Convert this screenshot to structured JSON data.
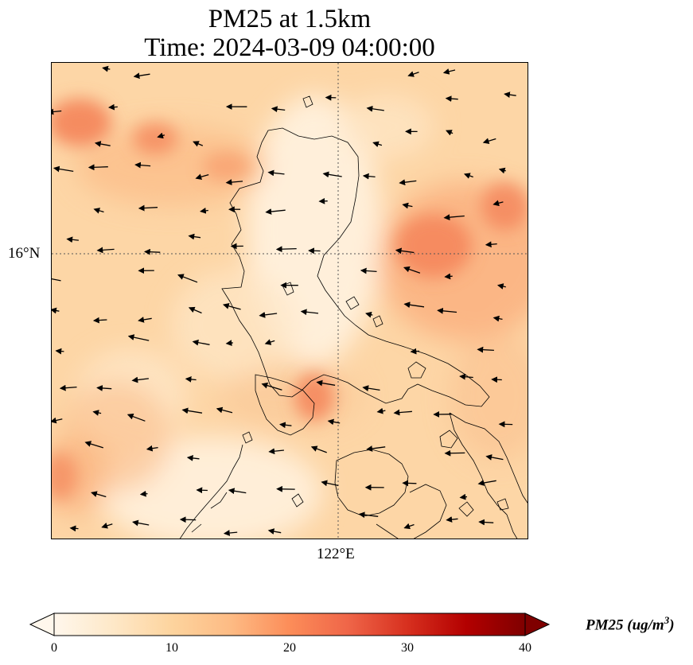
{
  "title": {
    "line1": "PM25 at 1.5km",
    "line2": "Time: 2024-03-09 04:00:00"
  },
  "map": {
    "gridline_lat_label": "16°N",
    "gridline_lon_label": "122°E",
    "colormap_name": "OrRd",
    "background_color": "#fdd9ab",
    "hotspot_color": "#f4845a",
    "coastline_color": "#000000",
    "wind_vector_color": "#000000",
    "wind_direction": "mostly westward / west-southwest"
  },
  "colorbar": {
    "ticks": [
      "0",
      "10",
      "20",
      "30",
      "40"
    ],
    "vmin": 0,
    "vmax": 40,
    "label_prefix": "PM25 (ug/m",
    "label_exponent": "3",
    "label_suffix": ")",
    "extend": "both",
    "colors": [
      "#fff7ec",
      "#fee8c8",
      "#fdd49e",
      "#fdbb84",
      "#fc8d59",
      "#ef6548",
      "#d7301f",
      "#b30000",
      "#7f0000"
    ]
  }
}
